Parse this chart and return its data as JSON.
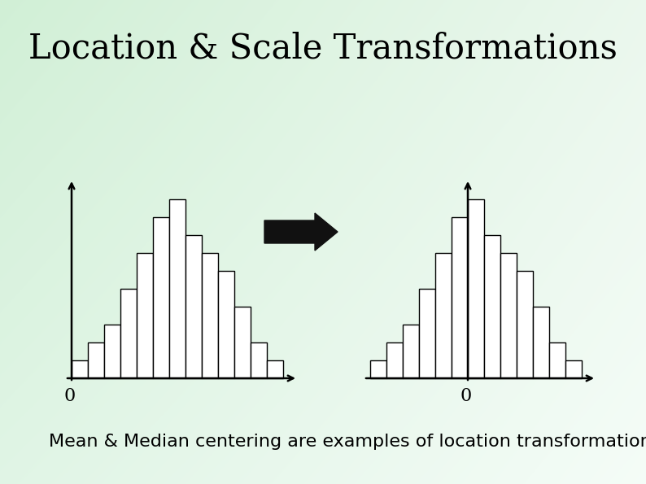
{
  "title": "Location & Scale Transformations",
  "subtitle": "Mean & Median centering are examples of location transformations",
  "hist_values": [
    1,
    2,
    3,
    5,
    7,
    9,
    10,
    8,
    7,
    6,
    4,
    2,
    1
  ],
  "title_fontsize": 30,
  "subtitle_fontsize": 16,
  "bar_facecolor": "#ffffff",
  "bar_edgecolor": "#000000",
  "zero_fontsize": 16,
  "bg_topleft": [
    0.82,
    0.94,
    0.84
  ],
  "bg_topright": [
    0.92,
    0.97,
    0.93
  ],
  "bg_bottomleft": [
    0.88,
    0.96,
    0.9
  ],
  "bg_bottomright": [
    0.96,
    0.99,
    0.97
  ]
}
